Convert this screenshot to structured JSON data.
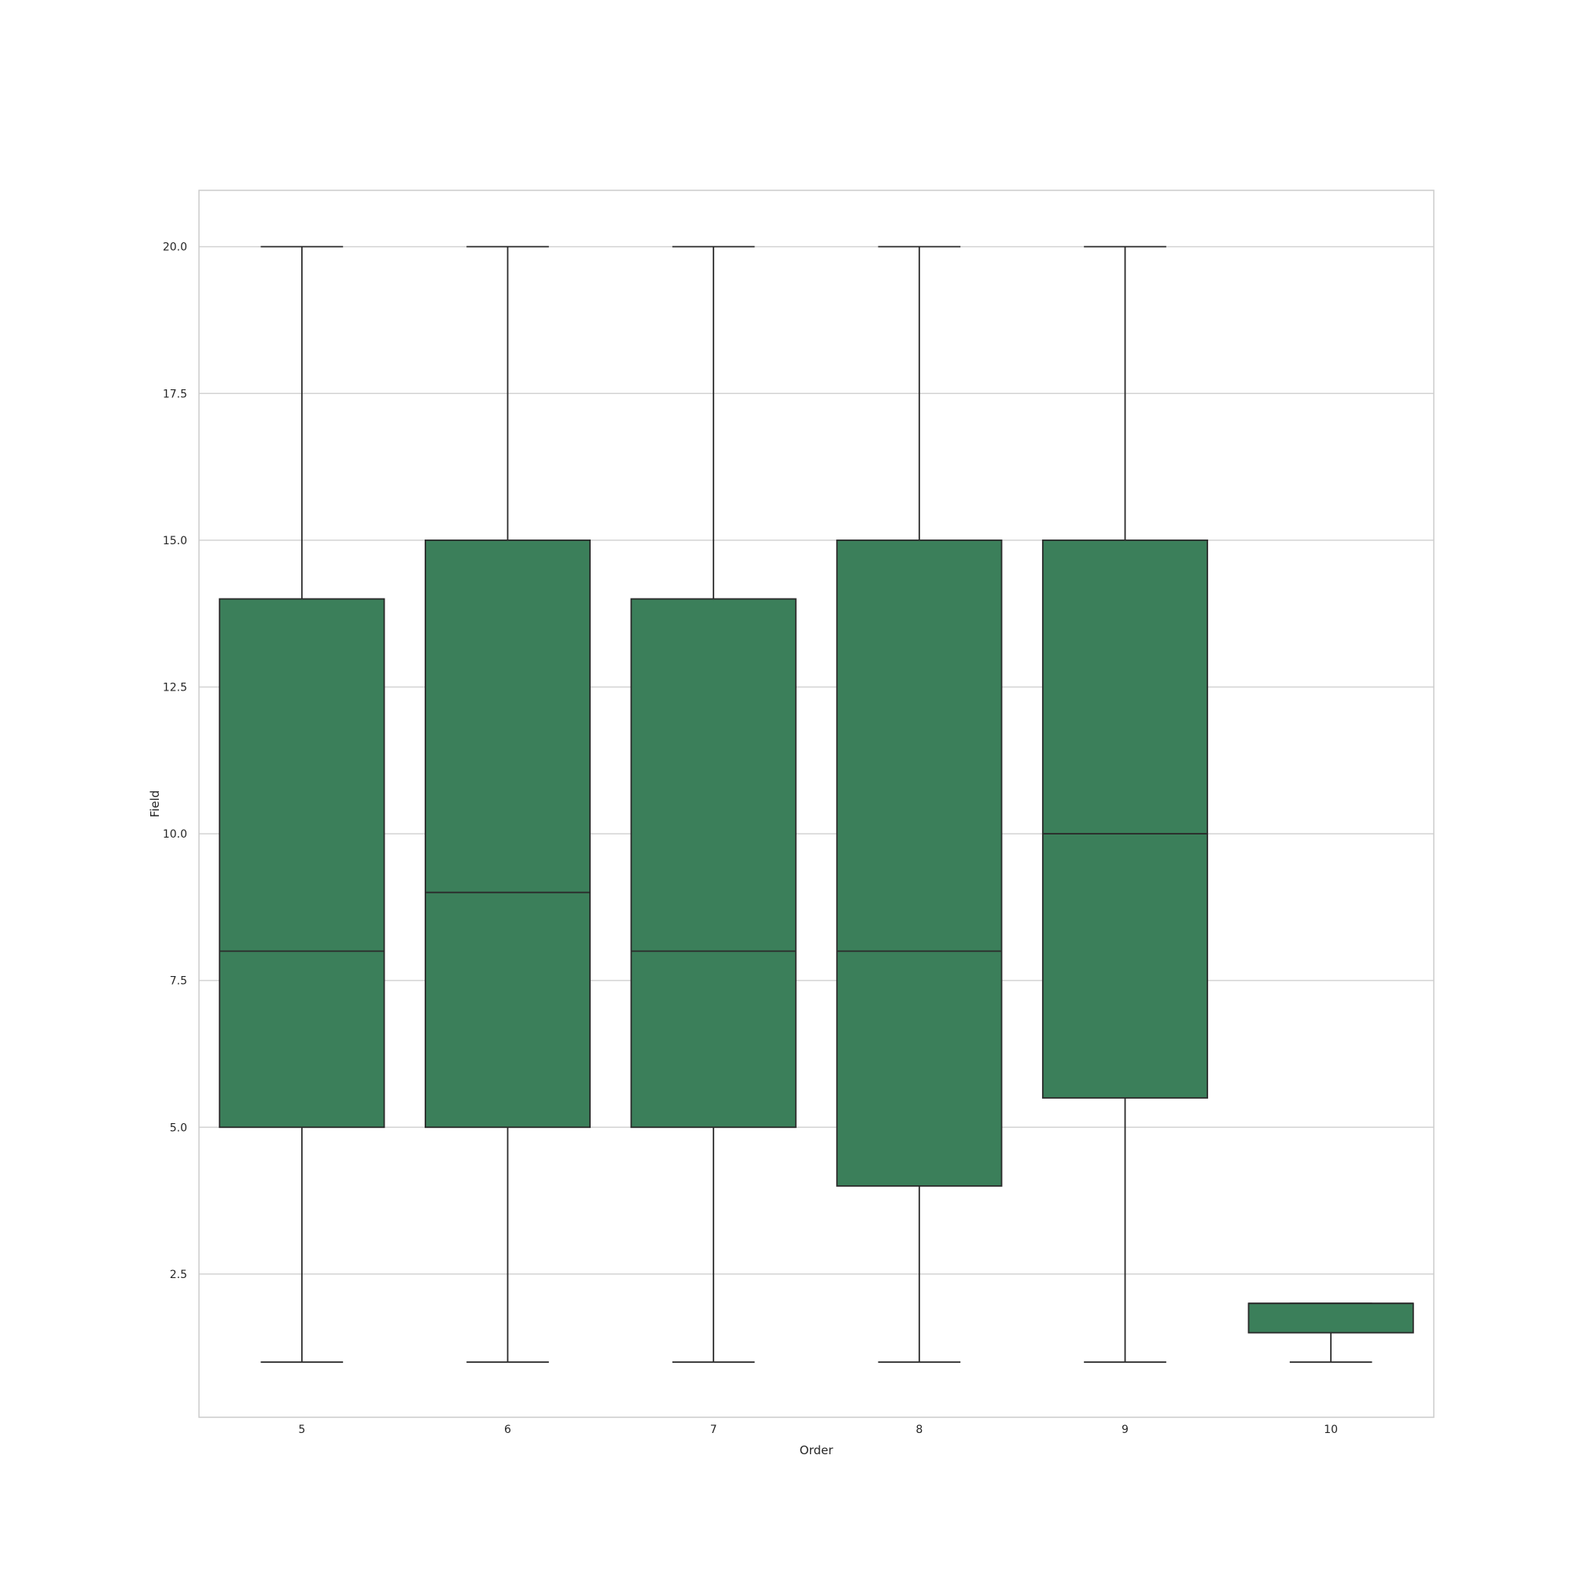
{
  "chart_data": {
    "type": "box",
    "xlabel": "Order",
    "ylabel": "Field",
    "ylim": [
      0.06,
      20.96
    ],
    "yticks": [
      "2.5",
      "5.0",
      "7.5",
      "10.0",
      "12.5",
      "15.0",
      "17.5",
      "20.0"
    ],
    "grid": true,
    "box_color": "#3b7f5a",
    "line_color": "#2b2b2b",
    "grid_color": "#d3d3d3",
    "categories": [
      "5",
      "6",
      "7",
      "8",
      "9",
      "10"
    ],
    "boxes": [
      {
        "category": "5",
        "whisker_low": 1,
        "q1": 5,
        "median": 8,
        "q3": 14,
        "whisker_high": 20
      },
      {
        "category": "6",
        "whisker_low": 1,
        "q1": 5,
        "median": 9,
        "q3": 15,
        "whisker_high": 20
      },
      {
        "category": "7",
        "whisker_low": 1,
        "q1": 5,
        "median": 8,
        "q3": 14,
        "whisker_high": 20
      },
      {
        "category": "8",
        "whisker_low": 1,
        "q1": 4,
        "median": 8,
        "q3": 15,
        "whisker_high": 20
      },
      {
        "category": "9",
        "whisker_low": 1,
        "q1": 5.5,
        "median": 10,
        "q3": 15,
        "whisker_high": 20
      },
      {
        "category": "10",
        "whisker_low": 1,
        "q1": 1.5,
        "median": 2,
        "q3": 2,
        "whisker_high": 2
      }
    ]
  }
}
